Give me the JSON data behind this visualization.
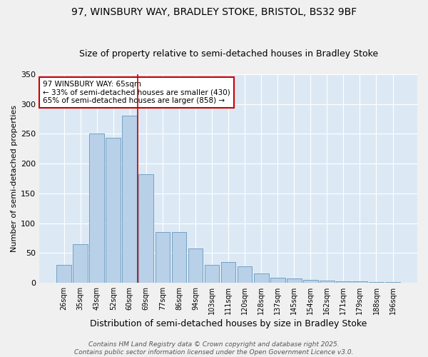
{
  "title": "97, WINSBURY WAY, BRADLEY STOKE, BRISTOL, BS32 9BF",
  "subtitle": "Size of property relative to semi-detached houses in Bradley Stoke",
  "xlabel": "Distribution of semi-detached houses by size in Bradley Stoke",
  "ylabel": "Number of semi-detached properties",
  "categories": [
    "26sqm",
    "35sqm",
    "43sqm",
    "52sqm",
    "60sqm",
    "69sqm",
    "77sqm",
    "86sqm",
    "94sqm",
    "103sqm",
    "111sqm",
    "120sqm",
    "128sqm",
    "137sqm",
    "145sqm",
    "154sqm",
    "162sqm",
    "171sqm",
    "179sqm",
    "188sqm",
    "196sqm"
  ],
  "values": [
    30,
    65,
    250,
    243,
    280,
    182,
    85,
    85,
    58,
    30,
    35,
    28,
    15,
    8,
    7,
    5,
    3,
    2,
    2,
    1,
    1
  ],
  "bar_color": "#b8d0e8",
  "bar_edge_color": "#6699bb",
  "annotation_title": "97 WINSBURY WAY: 65sqm",
  "annotation_line1": "← 33% of semi-detached houses are smaller (430)",
  "annotation_line2": "65% of semi-detached houses are larger (858) →",
  "annotation_box_color": "#ffffff",
  "annotation_box_edge": "#cc0000",
  "vline_color": "#cc0000",
  "vline_x": 4.5,
  "ylim": [
    0,
    350
  ],
  "yticks": [
    0,
    50,
    100,
    150,
    200,
    250,
    300,
    350
  ],
  "background_color": "#dce9f5",
  "grid_color": "#ffffff",
  "footer": "Contains HM Land Registry data © Crown copyright and database right 2025.\nContains public sector information licensed under the Open Government Licence v3.0.",
  "title_fontsize": 10,
  "subtitle_fontsize": 9,
  "xlabel_fontsize": 9,
  "ylabel_fontsize": 8,
  "tick_fontsize": 7,
  "annotation_fontsize": 7.5,
  "footer_fontsize": 6.5
}
